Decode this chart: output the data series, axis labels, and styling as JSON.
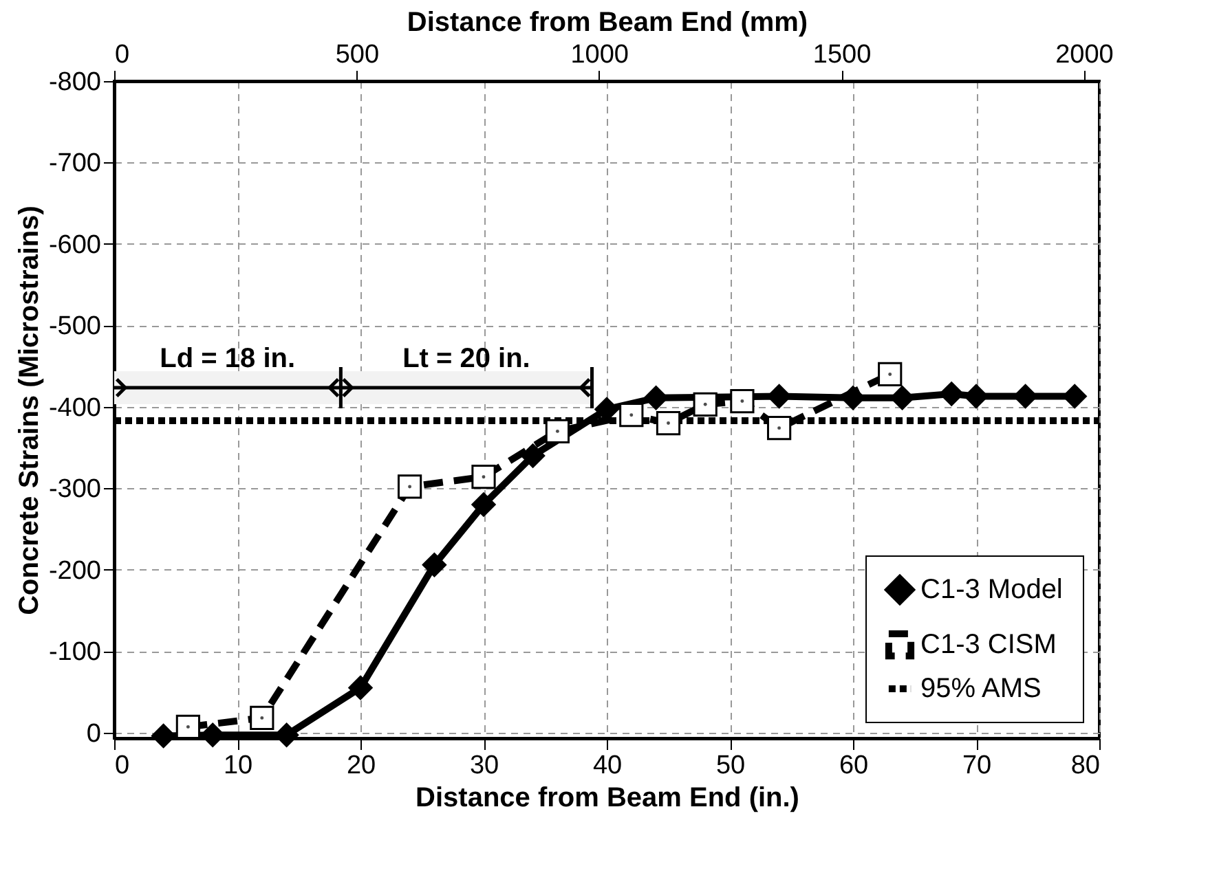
{
  "chart_data": {
    "type": "line",
    "xlabel": "Distance from Beam End (in.)",
    "ylabel": "Concrete Strains (Microstrains)",
    "x2label": "Distance from Beam End (mm)",
    "xlim": [
      0,
      80
    ],
    "xticks": [
      0,
      10,
      20,
      30,
      40,
      50,
      60,
      70,
      80
    ],
    "x2lim": [
      0,
      2032
    ],
    "x2ticks": [
      0,
      500,
      1000,
      1500,
      2000
    ],
    "ylim": [
      7,
      -800
    ],
    "yticks": [
      0,
      -100,
      -200,
      -300,
      -400,
      -500,
      -600,
      -700,
      -800
    ],
    "grid": true,
    "legend": "bottom right",
    "series": [
      {
        "name": "C1-3 Model",
        "color": "#000000",
        "marker": "diamond",
        "line_style": "solid",
        "x": [
          4,
          8,
          14,
          20,
          26,
          30,
          34,
          40,
          44,
          54,
          60,
          64,
          68,
          70,
          74,
          78
        ],
        "values": [
          4,
          3,
          3,
          -55,
          -206,
          -280,
          -340,
          -397,
          -411,
          -413,
          -411,
          -411,
          -416,
          -413,
          -413,
          -413
        ]
      },
      {
        "name": "C1-3 CISM",
        "color": "#000000",
        "marker": "square",
        "line_style": "dashed",
        "x": [
          6,
          12,
          24,
          30,
          36,
          42,
          45,
          48,
          51,
          54,
          63
        ],
        "values": [
          -7,
          -18,
          -302,
          -314,
          -370,
          -390,
          -380,
          -403,
          -407,
          -374,
          -440
        ]
      },
      {
        "name": "95% AMS",
        "color": "#000000",
        "marker": "none",
        "line_style": "dotted",
        "x": [
          0,
          80
        ],
        "values": [
          -383,
          -383
        ]
      }
    ],
    "bands": [
      {
        "axis": "x",
        "from": 0,
        "to": 18.4,
        "label": "Ld = 18 in."
      },
      {
        "axis": "x",
        "from": 18.4,
        "to": 38.8,
        "label": "Lt = 20 in."
      }
    ]
  }
}
